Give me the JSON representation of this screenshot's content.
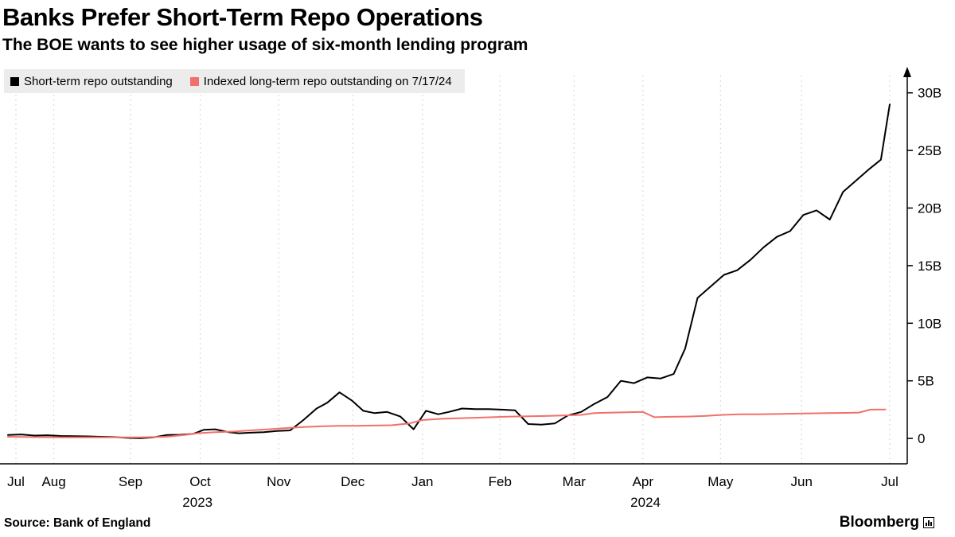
{
  "chart_data": {
    "type": "line",
    "title": "Banks Prefer Short-Term Repo Operations",
    "subtitle": "The BOE wants to see higher usage of six-month lending program",
    "ylabel": "",
    "xlabel": "",
    "ylim": [
      -2.2,
      31.5
    ],
    "grid": "vertical-dashed",
    "legend_position": "top-left",
    "yticks": [
      {
        "v": 0,
        "label": "0"
      },
      {
        "v": 5,
        "label": "5B"
      },
      {
        "v": 10,
        "label": "10B"
      },
      {
        "v": 15,
        "label": "15B"
      },
      {
        "v": 20,
        "label": "20B"
      },
      {
        "v": 25,
        "label": "25B"
      },
      {
        "v": 30,
        "label": "30B"
      }
    ],
    "xticks": [
      {
        "f": 0.009,
        "label": "Jul"
      },
      {
        "f": 0.052,
        "label": "Aug"
      },
      {
        "f": 0.139,
        "label": "Sep"
      },
      {
        "f": 0.218,
        "label": "Oct"
      },
      {
        "f": 0.307,
        "label": "Nov"
      },
      {
        "f": 0.391,
        "label": "Dec"
      },
      {
        "f": 0.47,
        "label": "Jan"
      },
      {
        "f": 0.558,
        "label": "Feb"
      },
      {
        "f": 0.642,
        "label": "Mar"
      },
      {
        "f": 0.72,
        "label": "Apr"
      },
      {
        "f": 0.808,
        "label": "May"
      },
      {
        "f": 0.9,
        "label": "Jun"
      },
      {
        "f": 1.0,
        "label": "Jul"
      }
    ],
    "year_labels": [
      {
        "f": 0.215,
        "label": "2023"
      },
      {
        "f": 0.723,
        "label": "2024"
      }
    ],
    "series": [
      {
        "name": "Short-term repo outstanding",
        "color": "#000000",
        "width": 2,
        "unit": "B GBP",
        "points": [
          [
            0.0,
            0.3
          ],
          [
            0.015,
            0.35
          ],
          [
            0.03,
            0.25
          ],
          [
            0.045,
            0.28
          ],
          [
            0.06,
            0.22
          ],
          [
            0.075,
            0.2
          ],
          [
            0.09,
            0.18
          ],
          [
            0.105,
            0.15
          ],
          [
            0.12,
            0.12
          ],
          [
            0.135,
            0.05
          ],
          [
            0.15,
            0.02
          ],
          [
            0.165,
            0.1
          ],
          [
            0.18,
            0.3
          ],
          [
            0.195,
            0.32
          ],
          [
            0.21,
            0.4
          ],
          [
            0.222,
            0.75
          ],
          [
            0.235,
            0.8
          ],
          [
            0.25,
            0.55
          ],
          [
            0.262,
            0.45
          ],
          [
            0.275,
            0.5
          ],
          [
            0.29,
            0.55
          ],
          [
            0.305,
            0.65
          ],
          [
            0.32,
            0.7
          ],
          [
            0.335,
            1.6
          ],
          [
            0.35,
            2.6
          ],
          [
            0.362,
            3.1
          ],
          [
            0.376,
            4.0
          ],
          [
            0.39,
            3.3
          ],
          [
            0.403,
            2.4
          ],
          [
            0.416,
            2.2
          ],
          [
            0.43,
            2.3
          ],
          [
            0.445,
            1.9
          ],
          [
            0.46,
            0.8
          ],
          [
            0.474,
            2.4
          ],
          [
            0.488,
            2.1
          ],
          [
            0.5,
            2.3
          ],
          [
            0.515,
            2.6
          ],
          [
            0.53,
            2.55
          ],
          [
            0.545,
            2.55
          ],
          [
            0.56,
            2.5
          ],
          [
            0.575,
            2.45
          ],
          [
            0.59,
            1.25
          ],
          [
            0.605,
            1.2
          ],
          [
            0.62,
            1.3
          ],
          [
            0.635,
            2.0
          ],
          [
            0.65,
            2.3
          ],
          [
            0.665,
            3.0
          ],
          [
            0.68,
            3.6
          ],
          [
            0.695,
            5.0
          ],
          [
            0.71,
            4.8
          ],
          [
            0.725,
            5.3
          ],
          [
            0.74,
            5.2
          ],
          [
            0.755,
            5.6
          ],
          [
            0.768,
            7.8
          ],
          [
            0.782,
            12.2
          ],
          [
            0.797,
            13.2
          ],
          [
            0.812,
            14.2
          ],
          [
            0.827,
            14.6
          ],
          [
            0.842,
            15.5
          ],
          [
            0.857,
            16.6
          ],
          [
            0.872,
            17.5
          ],
          [
            0.887,
            18.0
          ],
          [
            0.902,
            19.4
          ],
          [
            0.917,
            19.8
          ],
          [
            0.932,
            19.0
          ],
          [
            0.947,
            21.4
          ],
          [
            0.962,
            22.4
          ],
          [
            0.977,
            23.4
          ],
          [
            0.99,
            24.2
          ],
          [
            1.0,
            29.0
          ]
        ]
      },
      {
        "name": "Indexed long-term repo outstanding on 7/17/24",
        "color": "#f2706b",
        "width": 2,
        "unit": "B GBP",
        "points": [
          [
            0.0,
            0.15
          ],
          [
            0.03,
            0.12
          ],
          [
            0.06,
            0.1
          ],
          [
            0.09,
            0.1
          ],
          [
            0.12,
            0.1
          ],
          [
            0.15,
            0.1
          ],
          [
            0.18,
            0.15
          ],
          [
            0.2,
            0.3
          ],
          [
            0.215,
            0.45
          ],
          [
            0.235,
            0.55
          ],
          [
            0.255,
            0.6
          ],
          [
            0.275,
            0.7
          ],
          [
            0.295,
            0.8
          ],
          [
            0.315,
            0.9
          ],
          [
            0.335,
            1.0
          ],
          [
            0.355,
            1.05
          ],
          [
            0.375,
            1.1
          ],
          [
            0.395,
            1.1
          ],
          [
            0.415,
            1.12
          ],
          [
            0.435,
            1.15
          ],
          [
            0.455,
            1.3
          ],
          [
            0.47,
            1.6
          ],
          [
            0.49,
            1.7
          ],
          [
            0.51,
            1.75
          ],
          [
            0.53,
            1.8
          ],
          [
            0.55,
            1.85
          ],
          [
            0.57,
            1.9
          ],
          [
            0.59,
            1.92
          ],
          [
            0.61,
            1.95
          ],
          [
            0.63,
            2.0
          ],
          [
            0.65,
            2.05
          ],
          [
            0.665,
            2.2
          ],
          [
            0.685,
            2.25
          ],
          [
            0.705,
            2.28
          ],
          [
            0.72,
            2.3
          ],
          [
            0.733,
            1.85
          ],
          [
            0.75,
            1.88
          ],
          [
            0.77,
            1.9
          ],
          [
            0.79,
            1.95
          ],
          [
            0.81,
            2.05
          ],
          [
            0.83,
            2.1
          ],
          [
            0.85,
            2.1
          ],
          [
            0.87,
            2.12
          ],
          [
            0.89,
            2.15
          ],
          [
            0.91,
            2.18
          ],
          [
            0.93,
            2.2
          ],
          [
            0.95,
            2.22
          ],
          [
            0.965,
            2.25
          ],
          [
            0.978,
            2.5
          ],
          [
            0.995,
            2.52
          ]
        ]
      }
    ]
  },
  "legend": {
    "items": [
      {
        "label": "Short-term repo outstanding",
        "color": "#000000"
      },
      {
        "label": "Indexed long-term repo outstanding on 7/17/24",
        "color": "#f2706b"
      }
    ]
  },
  "footer": {
    "source": "Source:  Bank of England",
    "brand": "Bloomberg"
  },
  "icons": {
    "bloomberg_chart_icon": "mini-bar-chart-icon"
  }
}
